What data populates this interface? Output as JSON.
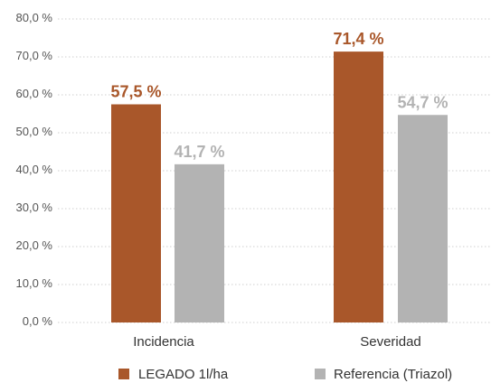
{
  "chart_data": {
    "type": "bar",
    "categories": [
      "Incidencia",
      "Severidad"
    ],
    "series": [
      {
        "name": "LEGADO 1l/ha",
        "color": "#a9572a",
        "values": [
          57.5,
          71.4
        ],
        "value_labels": [
          "57,5 %",
          "71,4 %"
        ]
      },
      {
        "name": "Referencia (Triazol)",
        "color": "#b3b3b3",
        "values": [
          41.7,
          54.7
        ],
        "value_labels": [
          "41,7 %",
          "54,7 %"
        ]
      }
    ],
    "yticks": [
      0,
      10,
      20,
      30,
      40,
      50,
      60,
      70,
      80
    ],
    "ytick_labels": [
      "0,0 %",
      "10,0 %",
      "20,0 %",
      "30,0 %",
      "40,0 %",
      "50,0 %",
      "60,0 %",
      "70,0 %",
      "80,0 %"
    ],
    "ylim": [
      0,
      80
    ],
    "grid": true,
    "legend_position": "bottom",
    "title": "",
    "xlabel": "",
    "ylabel": ""
  }
}
